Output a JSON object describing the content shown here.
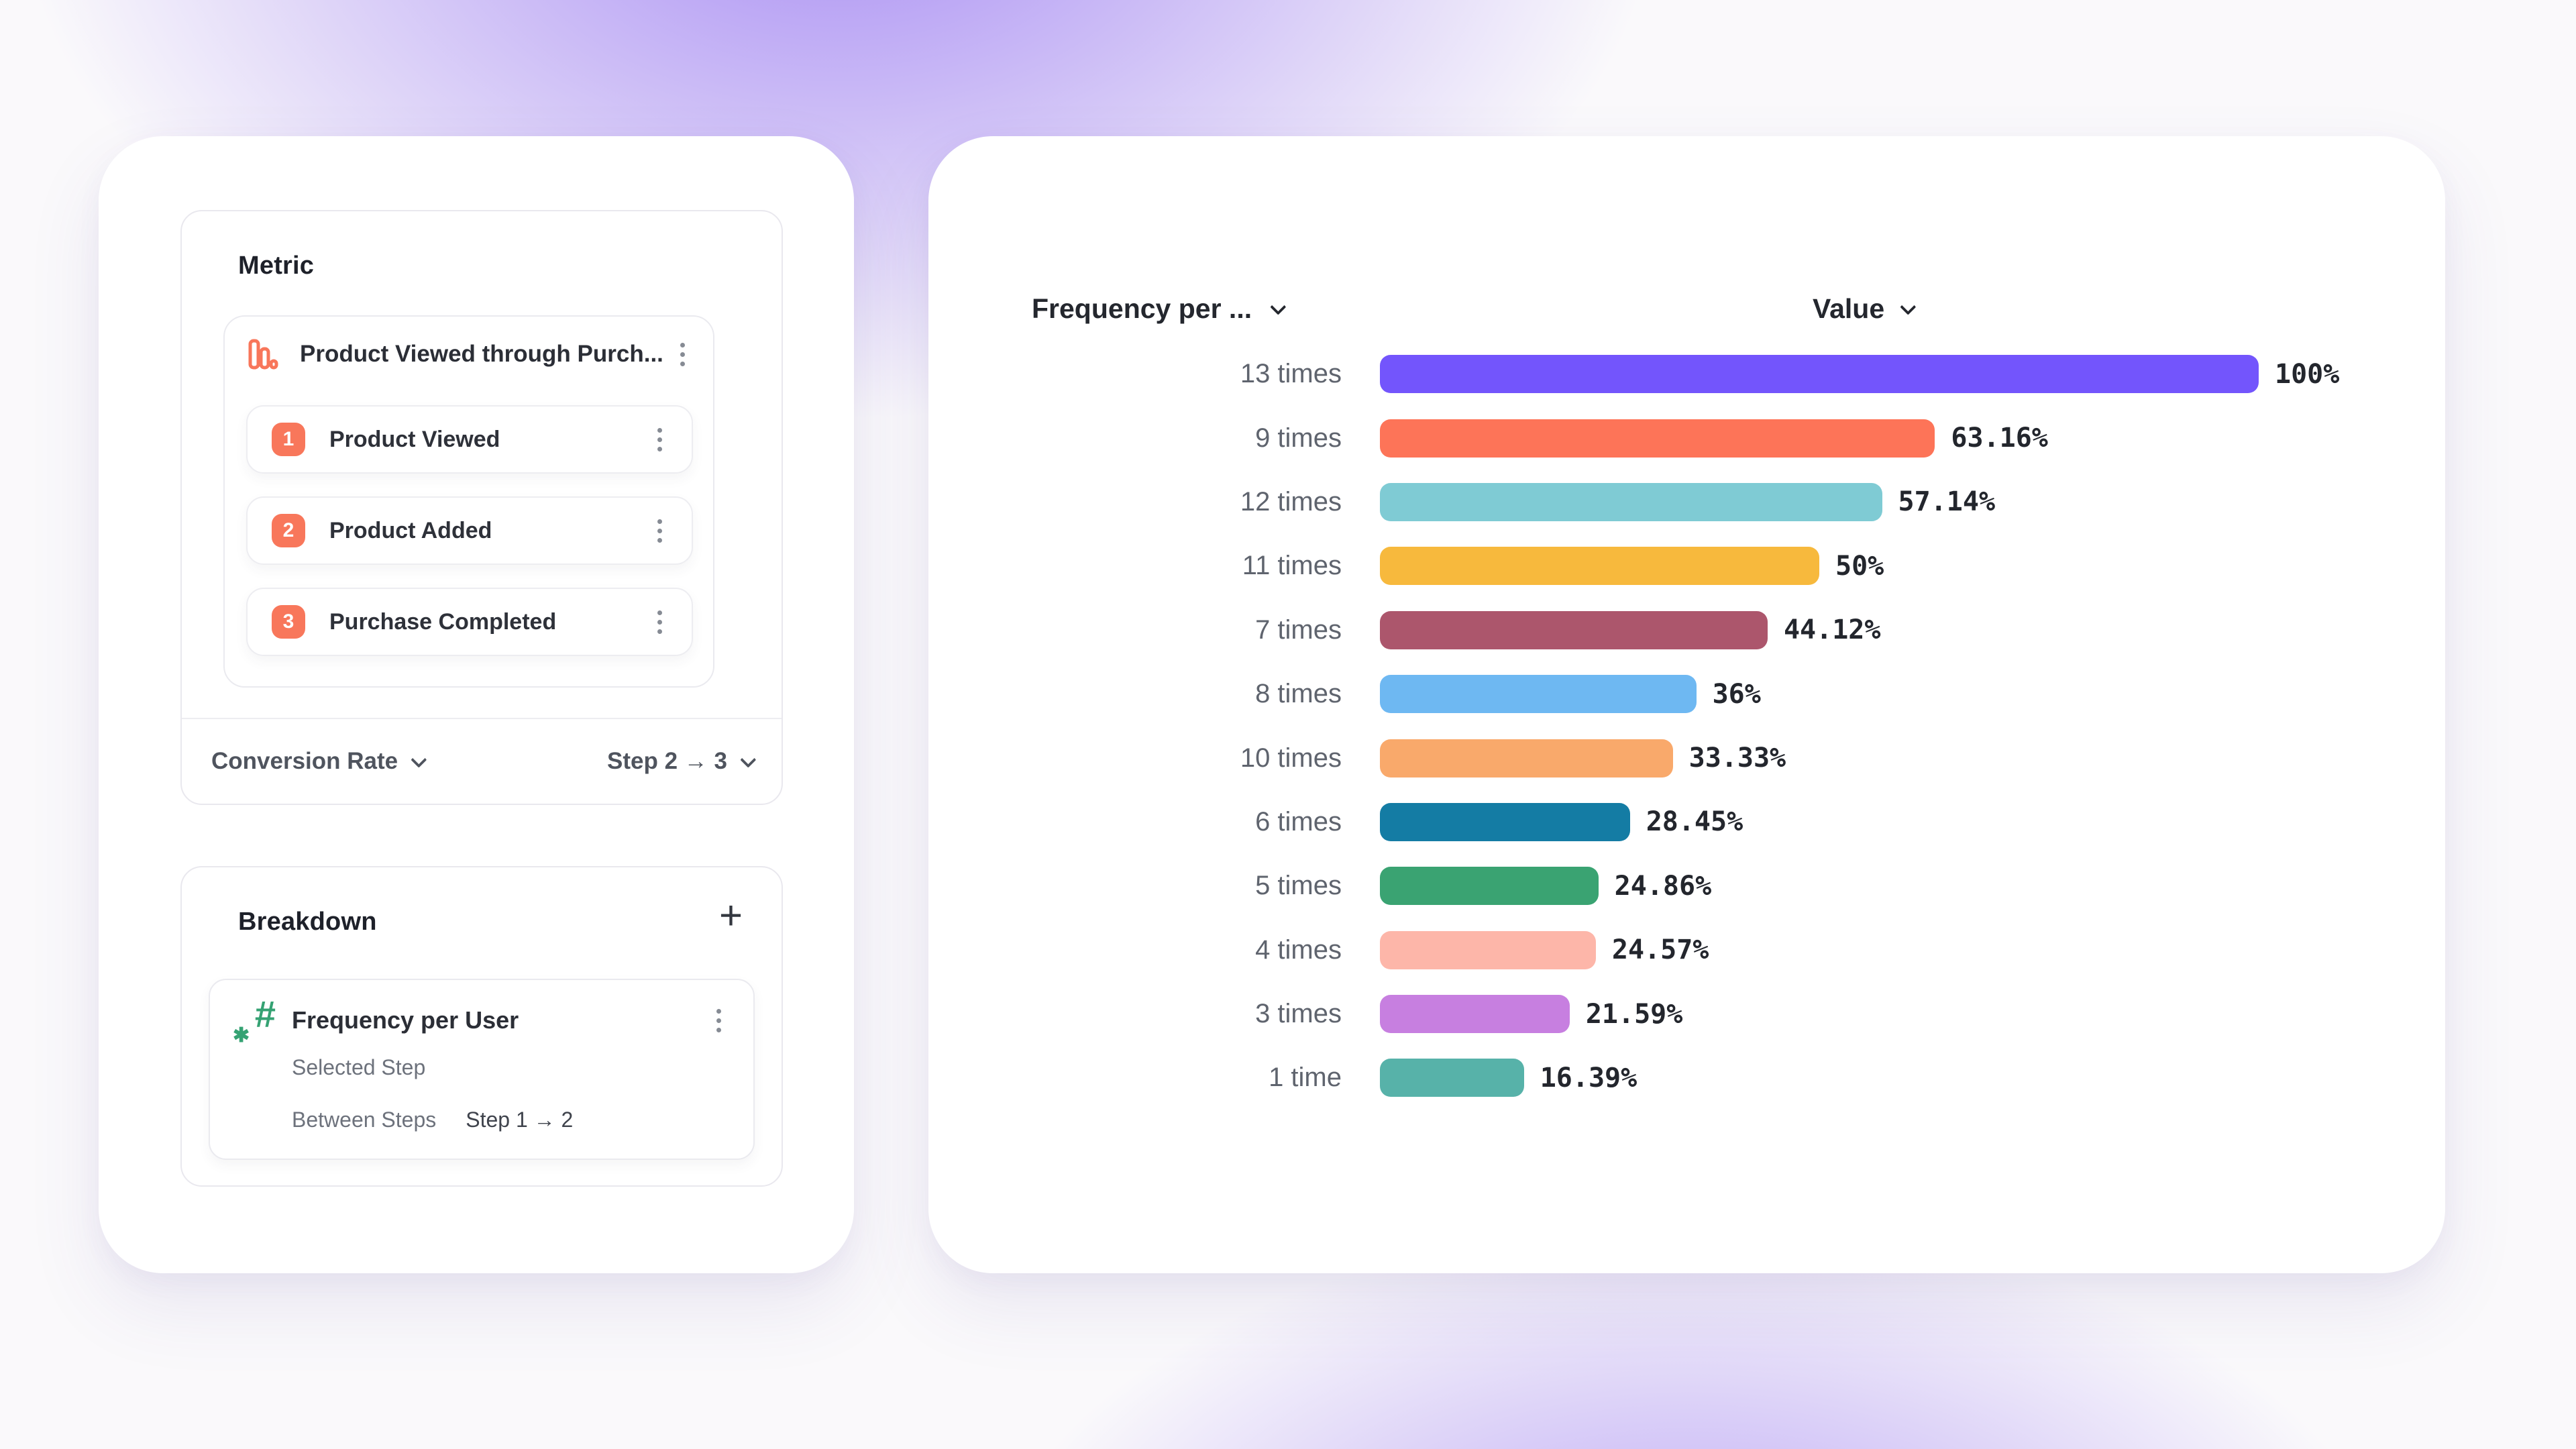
{
  "theme": {
    "background_accent": "#7c53ee",
    "step_badge_color": "#f8775b",
    "funnel_icon_color": "#f8765a",
    "hash_icon_color": "#35a273"
  },
  "left_panel": {
    "metric": {
      "title": "Metric",
      "funnel": {
        "name": "Product Viewed through Purch...",
        "icon": "bar-chart-icon",
        "steps": [
          {
            "number": "1",
            "label": "Product Viewed"
          },
          {
            "number": "2",
            "label": "Product Added"
          },
          {
            "number": "3",
            "label": "Purchase Completed"
          }
        ]
      },
      "footer": {
        "measurement_label": "Conversion Rate",
        "step_range_label": "Step 2 → 3"
      }
    },
    "breakdown": {
      "title": "Breakdown",
      "add_button": "+",
      "item": {
        "name": "Frequency per User",
        "icon": "hash-icon",
        "row2_label": "Selected Step",
        "row3_label": "Between Steps",
        "row3_value": "Step 1 → 2"
      }
    }
  },
  "chart": {
    "column1_header": "Frequency per ...",
    "column2_header": "Value"
  },
  "chart_data": {
    "type": "bar",
    "orientation": "horizontal",
    "title": "Frequency per User breakdown",
    "xlabel": "Value",
    "ylabel": "Frequency per User",
    "xlim": [
      0,
      100
    ],
    "grid": false,
    "legend": false,
    "categories": [
      "13 times",
      "9 times",
      "12 times",
      "11 times",
      "7 times",
      "8 times",
      "10 times",
      "6 times",
      "5 times",
      "4 times",
      "3 times",
      "1 time"
    ],
    "values": [
      100,
      63.16,
      57.14,
      50,
      44.12,
      36,
      33.33,
      28.45,
      24.86,
      24.57,
      21.59,
      16.39
    ],
    "rows": [
      {
        "label": "13 times",
        "pct": 100,
        "value_label": "100%",
        "color": "#7355fc"
      },
      {
        "label": "9 times",
        "pct": 63.16,
        "value_label": "63.16%",
        "color": "#fd7458"
      },
      {
        "label": "12 times",
        "pct": 57.14,
        "value_label": "57.14%",
        "color": "#7fcbd4"
      },
      {
        "label": "11 times",
        "pct": 50,
        "value_label": "50%",
        "color": "#f7b93d"
      },
      {
        "label": "7 times",
        "pct": 44.12,
        "value_label": "44.12%",
        "color": "#ac566c"
      },
      {
        "label": "8 times",
        "pct": 36,
        "value_label": "36%",
        "color": "#6eb8f2"
      },
      {
        "label": "10 times",
        "pct": 33.33,
        "value_label": "33.33%",
        "color": "#f9a96b"
      },
      {
        "label": "6 times",
        "pct": 28.45,
        "value_label": "28.45%",
        "color": "#147ca4"
      },
      {
        "label": "5 times",
        "pct": 24.86,
        "value_label": "24.86%",
        "color": "#3aa372"
      },
      {
        "label": "4 times",
        "pct": 24.57,
        "value_label": "24.57%",
        "color": "#fdb6a9"
      },
      {
        "label": "3 times",
        "pct": 21.59,
        "value_label": "21.59%",
        "color": "#c77fe0"
      },
      {
        "label": "1 time",
        "pct": 16.39,
        "value_label": "16.39%",
        "color": "#57b2a9"
      }
    ]
  }
}
